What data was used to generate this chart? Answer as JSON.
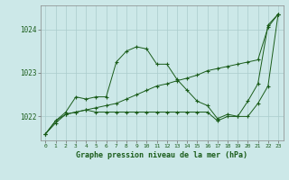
{
  "title": "Graphe pression niveau de la mer (hPa)",
  "bg_color": "#cce8e8",
  "grid_color": "#aacccc",
  "line_color": "#1a5c1a",
  "x_values": [
    0,
    1,
    2,
    3,
    4,
    5,
    6,
    7,
    8,
    9,
    10,
    11,
    12,
    13,
    14,
    15,
    16,
    17,
    18,
    19,
    20,
    21,
    22,
    23
  ],
  "line_zigzag": [
    1021.6,
    1021.9,
    1022.1,
    1022.45,
    1022.4,
    1022.45,
    1022.45,
    1023.25,
    1023.5,
    1023.6,
    1023.55,
    1023.2,
    1023.2,
    1022.85,
    1022.6,
    1022.35,
    1022.25,
    1021.95,
    1022.05,
    1022.0,
    1022.35,
    1022.75,
    1024.1,
    1024.35
  ],
  "line_flat": [
    1021.6,
    1021.9,
    1022.05,
    1022.1,
    1022.15,
    1022.1,
    1022.1,
    1022.1,
    1022.1,
    1022.1,
    1022.1,
    1022.1,
    1022.1,
    1022.1,
    1022.1,
    1022.1,
    1022.1,
    1021.9,
    1022.0,
    1022.0,
    1022.0,
    1022.3,
    1022.7,
    1024.35
  ],
  "line_trend": [
    1021.6,
    1021.85,
    1022.05,
    1022.1,
    1022.15,
    1022.2,
    1022.25,
    1022.3,
    1022.4,
    1022.5,
    1022.6,
    1022.7,
    1022.75,
    1022.82,
    1022.88,
    1022.95,
    1023.05,
    1023.1,
    1023.15,
    1023.2,
    1023.25,
    1023.3,
    1024.05,
    1024.35
  ],
  "ylim": [
    1021.45,
    1024.55
  ],
  "yticks": [
    1022,
    1023,
    1024
  ],
  "xlim": [
    -0.5,
    23.5
  ],
  "xticks": [
    0,
    1,
    2,
    3,
    4,
    5,
    6,
    7,
    8,
    9,
    10,
    11,
    12,
    13,
    14,
    15,
    16,
    17,
    18,
    19,
    20,
    21,
    22,
    23
  ]
}
